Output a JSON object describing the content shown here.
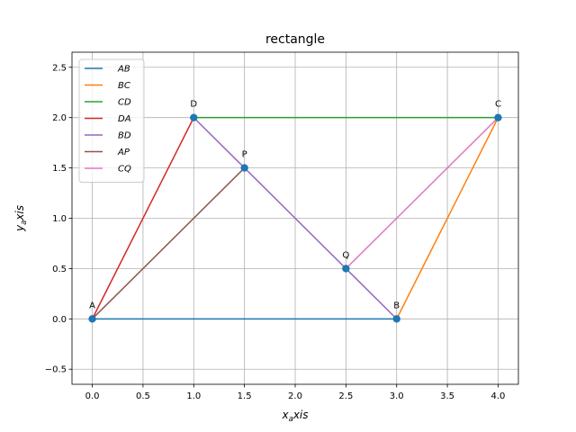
{
  "chart_data": {
    "type": "line",
    "title": "rectangle",
    "xlabel": {
      "base": "x",
      "sub": "a",
      "rest": "xis"
    },
    "ylabel": {
      "base": "y",
      "sub": "a",
      "rest": "xis"
    },
    "xlim": [
      -0.2,
      4.2
    ],
    "ylim": [
      -0.65,
      2.65
    ],
    "xticks": [
      0.0,
      0.5,
      1.0,
      1.5,
      2.0,
      2.5,
      3.0,
      3.5,
      4.0
    ],
    "xtick_labels": [
      "0.0",
      "0.5",
      "1.0",
      "1.5",
      "2.0",
      "2.5",
      "3.0",
      "3.5",
      "4.0"
    ],
    "yticks": [
      -0.5,
      0.0,
      0.5,
      1.0,
      1.5,
      2.0,
      2.5
    ],
    "ytick_labels": [
      "−0.5",
      "0.0",
      "0.5",
      "1.0",
      "1.5",
      "2.0",
      "2.5"
    ],
    "grid": true,
    "legend_position": "upper-left",
    "series": [
      {
        "name": "AB",
        "color": "#1f77b4",
        "x": [
          0,
          3
        ],
        "y": [
          0,
          0
        ]
      },
      {
        "name": "BC",
        "color": "#ff7f0e",
        "x": [
          3,
          4
        ],
        "y": [
          0,
          2
        ]
      },
      {
        "name": "CD",
        "color": "#2ca02c",
        "x": [
          4,
          1
        ],
        "y": [
          2,
          2
        ]
      },
      {
        "name": "DA",
        "color": "#d62728",
        "x": [
          1,
          0
        ],
        "y": [
          2,
          0
        ]
      },
      {
        "name": "BD",
        "color": "#9467bd",
        "x": [
          3,
          1
        ],
        "y": [
          0,
          2
        ]
      },
      {
        "name": "AP",
        "color": "#8c564b",
        "x": [
          0,
          1.5
        ],
        "y": [
          0,
          1.5
        ]
      },
      {
        "name": "CQ",
        "color": "#e377c2",
        "x": [
          4,
          2.5
        ],
        "y": [
          2,
          0.5
        ]
      }
    ],
    "points": [
      {
        "label": "A",
        "x": 0,
        "y": 0
      },
      {
        "label": "B",
        "x": 3,
        "y": 0
      },
      {
        "label": "C",
        "x": 4,
        "y": 2
      },
      {
        "label": "D",
        "x": 1,
        "y": 2
      },
      {
        "label": "P",
        "x": 1.5,
        "y": 1.5
      },
      {
        "label": "Q",
        "x": 2.5,
        "y": 0.5
      }
    ],
    "point_color": "#1f77b4"
  }
}
